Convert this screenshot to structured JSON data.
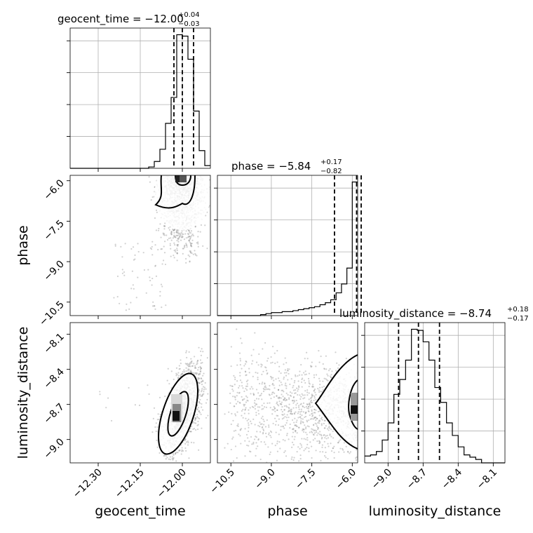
{
  "chart_data": {
    "type": "corner",
    "parameters": [
      "geocent_time",
      "phase",
      "luminosity_distance"
    ],
    "axis_labels": {
      "geocent_time": "geocent_time",
      "phase": "phase",
      "luminosity_distance": "luminosity_distance"
    },
    "ticks": {
      "geocent_time": {
        "values": [
          -12.3,
          -12.15,
          -12.0
        ],
        "labels": [
          "−12.30",
          "−12.15",
          "−12.00"
        ],
        "range": [
          -12.4,
          -11.9
        ]
      },
      "phase": {
        "values": [
          -10.5,
          -9.0,
          -7.5,
          -6.0
        ],
        "labels": [
          "−10.5",
          "−9.0",
          "−7.5",
          "−6.0"
        ],
        "range": [
          -11.0,
          -5.8
        ]
      },
      "luminosity_distance": {
        "values": [
          -9.0,
          -8.7,
          -8.4,
          -8.1
        ],
        "labels": [
          "−9.0",
          "−8.7",
          "−8.4",
          "−8.1"
        ],
        "range": [
          -9.2,
          -8.0
        ]
      }
    },
    "diagonal": [
      {
        "parameter": "geocent_time",
        "title_text": "geocent_time = −12.00",
        "title_sup": "+0.04",
        "title_sub": "−0.03",
        "median": -12.0,
        "quantiles": [
          -12.03,
          -12.0,
          -11.96
        ],
        "bin_edges": [
          -12.4,
          -12.38,
          -12.36,
          -12.34,
          -12.32,
          -12.3,
          -12.28,
          -12.26,
          -12.24,
          -12.22,
          -12.2,
          -12.18,
          -12.16,
          -12.14,
          -12.12,
          -12.1,
          -12.08,
          -12.06,
          -12.04,
          -12.02,
          -12.0,
          -11.98,
          -11.96,
          -11.94,
          -11.92,
          -11.9
        ],
        "counts": [
          0,
          0,
          0,
          0,
          0,
          0,
          0,
          0,
          0,
          0,
          0,
          0,
          0,
          0,
          1,
          5,
          14,
          33,
          52,
          98,
          97,
          80,
          42,
          13,
          2
        ]
      },
      {
        "parameter": "phase",
        "title_text": "phase = −5.84",
        "title_sup": "+0.17",
        "title_sub": "−0.82",
        "median": -5.84,
        "quantiles": [
          -6.66,
          -5.84,
          -5.67
        ],
        "bin_edges": [
          -11.0,
          -10.8,
          -10.6,
          -10.4,
          -10.2,
          -10.0,
          -9.8,
          -9.6,
          -9.4,
          -9.2,
          -9.0,
          -8.8,
          -8.6,
          -8.4,
          -8.2,
          -8.0,
          -7.8,
          -7.6,
          -7.4,
          -7.2,
          -7.0,
          -6.8,
          -6.6,
          -6.4,
          -6.2,
          -6.0,
          -5.8
        ],
        "counts": [
          0,
          0,
          0,
          0,
          0,
          0,
          0,
          0,
          1,
          2,
          3,
          3,
          4,
          4,
          5,
          6,
          7,
          8,
          9,
          11,
          13,
          16,
          23,
          32,
          48,
          135
        ]
      },
      {
        "parameter": "luminosity_distance",
        "title_text": "luminosity_distance = −8.74",
        "title_sup": "+0.18",
        "title_sub": "−0.17",
        "median": -8.74,
        "quantiles": [
          -8.91,
          -8.74,
          -8.56
        ],
        "bin_edges": [
          -9.2,
          -9.15,
          -9.1,
          -9.05,
          -9.0,
          -8.95,
          -8.9,
          -8.85,
          -8.8,
          -8.75,
          -8.7,
          -8.65,
          -8.6,
          -8.55,
          -8.5,
          -8.45,
          -8.4,
          -8.35,
          -8.3,
          -8.25,
          -8.2,
          -8.15,
          -8.1,
          -8.05,
          -8.0
        ],
        "counts": [
          6,
          7,
          10,
          20,
          35,
          60,
          73,
          90,
          117,
          116,
          106,
          90,
          66,
          53,
          35,
          24,
          14,
          7,
          5,
          3,
          0,
          0,
          0,
          0
        ]
      }
    ],
    "pairs": [
      {
        "x": "geocent_time",
        "y": "phase",
        "samples": {
          "count": 1400,
          "x_mean": -12.0,
          "x_sd": 0.04,
          "y_peak": -6.0,
          "y_tail_to": -10.8
        },
        "contour_levels": [
          0.39,
          0.86
        ],
        "peak": [
          -12.0,
          -6.0
        ]
      },
      {
        "x": "geocent_time",
        "y": "luminosity_distance",
        "samples": {
          "count": 1500,
          "x_mean": -12.0,
          "x_sd": 0.035,
          "y_mean": -8.74,
          "y_sd": 0.18,
          "correlation": 0.55
        },
        "contour_levels": [
          0.39,
          0.86
        ],
        "peak": [
          -12.02,
          -8.78
        ]
      },
      {
        "x": "phase",
        "y": "luminosity_distance",
        "samples": {
          "count": 1500,
          "x_peak": -5.9,
          "y_mean": -8.74,
          "y_sd": 0.2
        },
        "contour_levels": [
          0.39,
          0.86
        ],
        "peak": [
          -5.9,
          -8.78
        ]
      }
    ],
    "grid": true,
    "line_style": {
      "quantiles": "dashed"
    },
    "colors": {
      "line": "#000000",
      "grid": "#b0b0b0",
      "points": "#808080"
    }
  }
}
